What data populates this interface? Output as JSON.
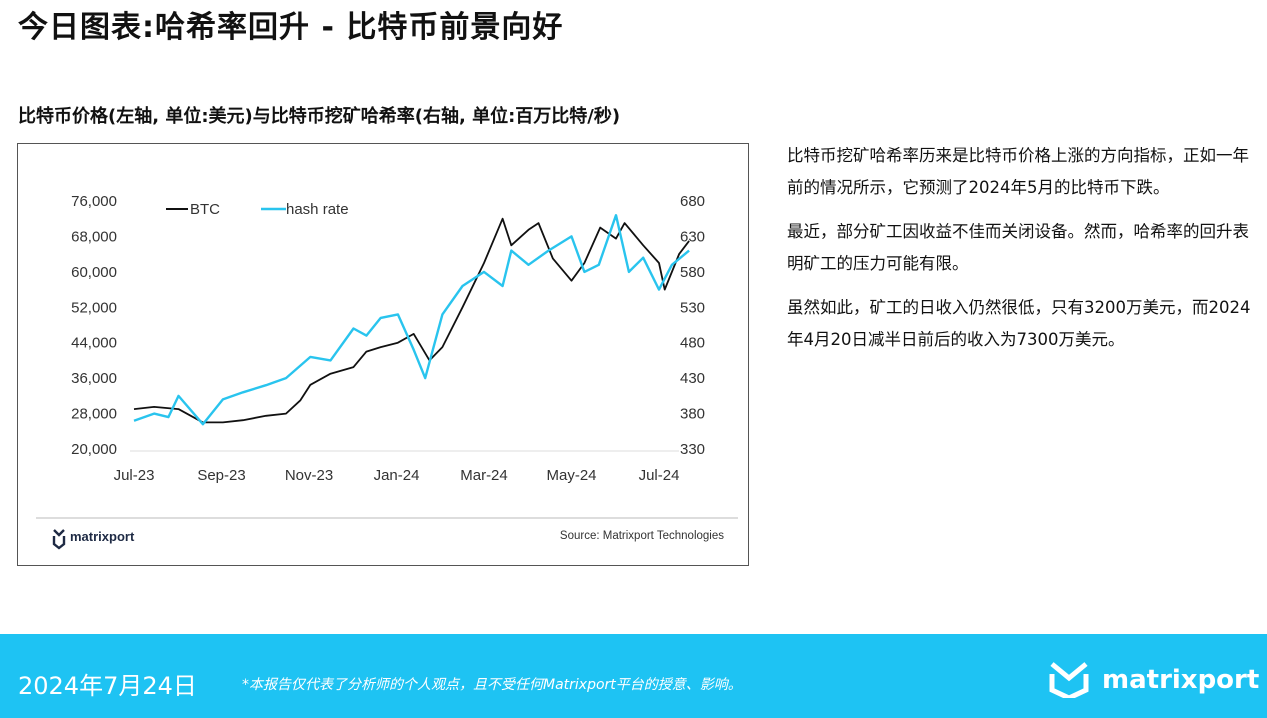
{
  "header": {
    "title": "今日图表:哈希率回升 - 比特币前景向好",
    "subtitle": "比特币价格(左轴, 单位:美元)与比特币挖矿哈希率(右轴, 单位:百万比特/秒)"
  },
  "chart_data": {
    "type": "line",
    "title": "",
    "xlabel": "",
    "ylabel": "",
    "x_ticks": [
      "Jul-23",
      "Sep-23",
      "Nov-23",
      "Jan-24",
      "Mar-24",
      "May-24",
      "Jul-24"
    ],
    "y_left_ticks": [
      "20,000",
      "28,000",
      "36,000",
      "44,000",
      "52,000",
      "60,000",
      "68,000",
      "76,000"
    ],
    "y_right_ticks": [
      "330",
      "380",
      "430",
      "480",
      "530",
      "580",
      "630",
      "680"
    ],
    "ylim_left": [
      20000,
      76000
    ],
    "ylim_right": [
      330,
      680
    ],
    "legend": "top-left",
    "grid": false,
    "series": [
      {
        "name": "BTC",
        "axis": "left",
        "color": "#111111",
        "x": [
          "2023-07-01",
          "2023-07-15",
          "2023-08-01",
          "2023-08-18",
          "2023-09-01",
          "2023-09-15",
          "2023-10-01",
          "2023-10-15",
          "2023-10-25",
          "2023-11-01",
          "2023-11-15",
          "2023-12-01",
          "2023-12-10",
          "2023-12-20",
          "2024-01-01",
          "2024-01-12",
          "2024-01-23",
          "2024-02-01",
          "2024-02-15",
          "2024-03-01",
          "2024-03-14",
          "2024-03-20",
          "2024-04-01",
          "2024-04-08",
          "2024-04-18",
          "2024-05-01",
          "2024-05-10",
          "2024-05-21",
          "2024-06-01",
          "2024-06-07",
          "2024-06-20",
          "2024-07-01",
          "2024-07-05",
          "2024-07-15",
          "2024-07-22"
        ],
        "values": [
          29000,
          29500,
          29000,
          26000,
          26000,
          26500,
          27500,
          28000,
          31000,
          34500,
          37000,
          38500,
          42000,
          43000,
          44000,
          46000,
          40000,
          43000,
          52000,
          62000,
          72000,
          66000,
          69500,
          71000,
          63000,
          58000,
          62000,
          70000,
          67500,
          71000,
          66000,
          62000,
          56000,
          64000,
          67000
        ]
      },
      {
        "name": "hash rate",
        "axis": "right",
        "color": "#29c4ee",
        "x": [
          "2023-07-01",
          "2023-07-15",
          "2023-07-25",
          "2023-08-01",
          "2023-08-18",
          "2023-09-01",
          "2023-09-15",
          "2023-10-01",
          "2023-10-15",
          "2023-11-01",
          "2023-11-15",
          "2023-12-01",
          "2023-12-10",
          "2023-12-20",
          "2024-01-01",
          "2024-01-12",
          "2024-01-20",
          "2024-02-01",
          "2024-02-15",
          "2024-03-01",
          "2024-03-14",
          "2024-03-20",
          "2024-04-01",
          "2024-04-15",
          "2024-05-01",
          "2024-05-10",
          "2024-05-20",
          "2024-06-01",
          "2024-06-10",
          "2024-06-20",
          "2024-07-01",
          "2024-07-10",
          "2024-07-22"
        ],
        "values": [
          370,
          380,
          375,
          405,
          365,
          400,
          410,
          420,
          430,
          460,
          455,
          500,
          490,
          515,
          520,
          470,
          430,
          520,
          560,
          580,
          560,
          610,
          590,
          610,
          630,
          580,
          590,
          660,
          580,
          600,
          555,
          590,
          610
        ]
      }
    ],
    "source": "Source: Matrixport Technologies"
  },
  "chart_brand": "matrixport",
  "body": {
    "paragraphs": [
      "比特币挖矿哈希率历来是比特币价格上涨的方向指标，正如一年前的情况所示，它预测了2024年5月的比特币下跌。",
      "最近，部分矿工因收益不佳而关闭设备。然而，哈希率的回升表明矿工的压力可能有限。",
      "虽然如此，矿工的日收入仍然很低，只有3200万美元，而2024年4月20日减半日前后的收入为7300万美元。"
    ]
  },
  "footer": {
    "date": "2024年7月24日",
    "note": "*本报告仅代表了分析师的个人观点，且不受任何Matrixport平台的授意、影响。",
    "brand": "matrixport",
    "bg": "#1ec3f3"
  }
}
